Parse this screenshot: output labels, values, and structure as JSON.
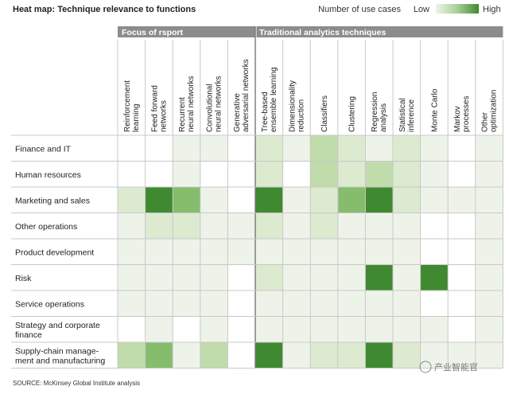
{
  "title": "Heat map: Technique relevance to functions",
  "legend": {
    "label": "Number of use cases",
    "low_label": "Low",
    "high_label": "High",
    "gradient": [
      "#eef4ea",
      "#a8cf94",
      "#3f8a30"
    ]
  },
  "groups": [
    {
      "label": "Focus of rsport",
      "span": 5
    },
    {
      "label": "Traditional analytics techniques",
      "span": 9
    }
  ],
  "source": "SOURCE:  McKinsey Global Institute analysis",
  "watermark": "产业智能官",
  "colors": {
    "group_header": "#8c8c8c",
    "levels": [
      "#ffffff",
      "#eef3ea",
      "#dceacf",
      "#c0dcaa",
      "#86bd6c",
      "#3f8a30"
    ]
  },
  "chart_data": {
    "type": "heatmap",
    "title": "Heat map: Technique relevance to functions",
    "x": [
      "Reinforcement learning",
      "Feed forward networks",
      "Recurrent neural networks",
      "Convolutional neural networks",
      "Generative adversarial networks",
      "Tree-based ensemble learning",
      "Dimensionality reduction",
      "Classifiers",
      "Clustering",
      "Regression analysis",
      "Statistical inference",
      "Monte Carlo",
      "Markov processes",
      "Other optimization"
    ],
    "y": [
      "Finance and IT",
      "Human resources",
      "Marketing and sales",
      "Other operations",
      "Product development",
      "Risk",
      "Service operations",
      "Strategy and corporate finance",
      "Supply-chain manage- ment and manufacturing"
    ],
    "scale": "0 = none, 5 = high",
    "values": [
      [
        0,
        0,
        1,
        1,
        0,
        2,
        1,
        3,
        2,
        1,
        2,
        1,
        0,
        1
      ],
      [
        0,
        0,
        1,
        0,
        0,
        2,
        0,
        3,
        2,
        3,
        2,
        1,
        0,
        1
      ],
      [
        2,
        5,
        4,
        1,
        0,
        5,
        1,
        2,
        4,
        5,
        2,
        1,
        1,
        1
      ],
      [
        1,
        2,
        2,
        1,
        1,
        2,
        1,
        2,
        1,
        1,
        1,
        0,
        0,
        1
      ],
      [
        1,
        1,
        1,
        1,
        1,
        1,
        1,
        1,
        1,
        1,
        1,
        0,
        0,
        1
      ],
      [
        1,
        1,
        1,
        1,
        0,
        2,
        1,
        1,
        1,
        5,
        1,
        5,
        0,
        1
      ],
      [
        1,
        1,
        1,
        1,
        0,
        1,
        1,
        1,
        1,
        1,
        1,
        0,
        0,
        1
      ],
      [
        0,
        1,
        0,
        1,
        0,
        1,
        1,
        1,
        1,
        1,
        1,
        1,
        0,
        1
      ],
      [
        3,
        4,
        1,
        3,
        0,
        5,
        1,
        2,
        2,
        5,
        2,
        1,
        1,
        1
      ]
    ]
  }
}
